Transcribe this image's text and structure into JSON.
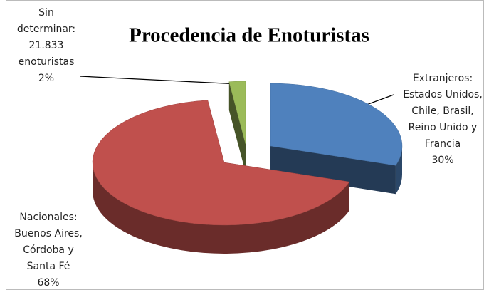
{
  "chart_data": {
    "type": "pie",
    "title": "Procedencia de Enoturistas",
    "categories": [
      [
        "Extranjeros:",
        "Estados Unidos,",
        "Chile, Brasil,",
        "Reino Unido y",
        "Francia"
      ],
      [
        "Nacionales:",
        "Buenos Aires,",
        "Córdoba y",
        "Santa Fé"
      ],
      [
        "Sin",
        "determinar:",
        "21.833",
        "enoturistas"
      ]
    ],
    "values": [
      30,
      68,
      2
    ],
    "value_labels": [
      "30%",
      "68%",
      "2%"
    ],
    "colors": [
      "#4f81bd",
      "#c0504d",
      "#9bbb59"
    ]
  }
}
